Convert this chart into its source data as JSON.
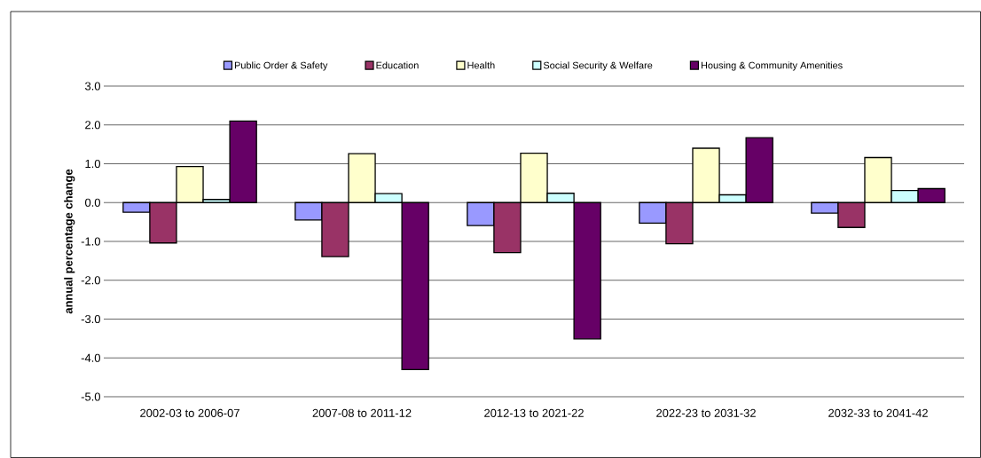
{
  "chart_data": {
    "type": "bar",
    "ylabel": "annual percentage change",
    "categories": [
      "2002-03 to 2006-07",
      "2007-08 to 2011-12",
      "2012-13 to 2021-22",
      "2022-23 to 2031-32",
      "2032-33 to 2041-42"
    ],
    "series": [
      {
        "name": "Public Order & Safety",
        "color": "#9999ff",
        "values": [
          -0.25,
          -0.45,
          -0.59,
          -0.53,
          -0.27
        ]
      },
      {
        "name": "Education",
        "color": "#993366",
        "values": [
          -1.04,
          -1.39,
          -1.29,
          -1.06,
          -0.64
        ]
      },
      {
        "name": "Health",
        "color": "#ffffcc",
        "values": [
          0.93,
          1.26,
          1.27,
          1.4,
          1.16
        ]
      },
      {
        "name": "Social Security & Welfare",
        "color": "#ccffff",
        "values": [
          0.08,
          0.23,
          0.24,
          0.2,
          0.31
        ]
      },
      {
        "name": "Housing & Community Amenities",
        "color": "#660066",
        "values": [
          2.1,
          -4.3,
          -3.51,
          1.67,
          0.36
        ]
      }
    ],
    "ylim": [
      -5,
      3
    ],
    "yticks": [
      {
        "value": -5,
        "label": "-5.0"
      },
      {
        "value": -4,
        "label": "-4.0"
      },
      {
        "value": -3,
        "label": "-3.0"
      },
      {
        "value": -2,
        "label": "-2.0"
      },
      {
        "value": -1,
        "label": "-1.0"
      },
      {
        "value": 0,
        "label": "0.0"
      },
      {
        "value": 1,
        "label": "1.0"
      },
      {
        "value": 2,
        "label": "2.0"
      },
      {
        "value": 3,
        "label": "3.0"
      }
    ],
    "grid": "y",
    "legend": "top"
  }
}
